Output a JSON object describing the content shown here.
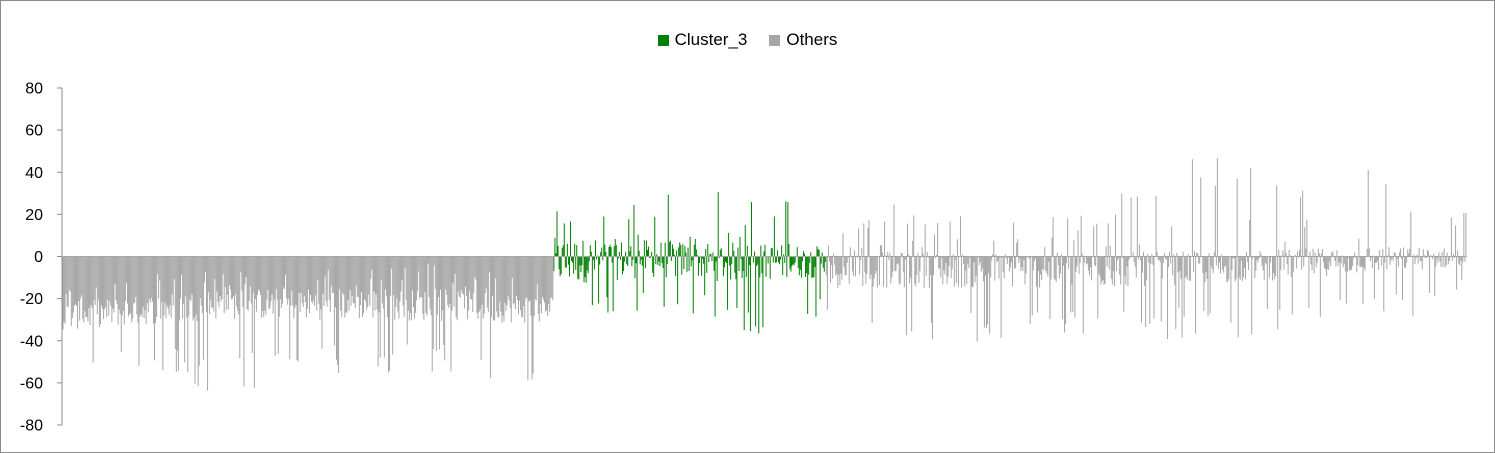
{
  "chart_data": {
    "type": "bar",
    "title": "",
    "xlabel": "",
    "ylabel": "",
    "ylim": [
      -80,
      80
    ],
    "yticks": [
      80,
      60,
      40,
      20,
      0,
      -20,
      -40,
      -60,
      -80
    ],
    "legend_position": "top-center",
    "grid": false,
    "series": [
      {
        "name": "Cluster_3",
        "color": "#007f00",
        "x_range": [
          472,
          733
        ],
        "envelope_low": [
          [
            472,
            -30
          ],
          [
            500,
            -28
          ],
          [
            540,
            -30
          ],
          [
            560,
            -25
          ],
          [
            600,
            -32
          ],
          [
            620,
            -28
          ],
          [
            650,
            -38
          ],
          [
            700,
            -36
          ],
          [
            733,
            -28
          ]
        ],
        "envelope_high": [
          [
            472,
            25
          ],
          [
            480,
            20
          ],
          [
            492,
            40
          ],
          [
            510,
            28
          ],
          [
            540,
            25
          ],
          [
            580,
            32
          ],
          [
            620,
            28
          ],
          [
            650,
            37
          ],
          [
            680,
            30
          ],
          [
            700,
            30
          ],
          [
            733,
            20
          ]
        ],
        "trend_low": [
          [
            472,
            -14
          ],
          [
            560,
            -10
          ],
          [
            640,
            -12
          ],
          [
            733,
            -10
          ]
        ],
        "trend_high": [
          [
            472,
            9
          ],
          [
            560,
            8
          ],
          [
            640,
            7
          ],
          [
            733,
            5
          ]
        ]
      },
      {
        "name": "Others",
        "color": "#a6a6a6",
        "x_range": [
          0,
          471,
          734,
          1349
        ],
        "envelope_low": [
          [
            0,
            -60
          ],
          [
            50,
            -50
          ],
          [
            150,
            -66
          ],
          [
            250,
            -58
          ],
          [
            350,
            -55
          ],
          [
            450,
            -65
          ],
          [
            471,
            -55
          ],
          [
            734,
            -25
          ],
          [
            800,
            -55
          ],
          [
            900,
            -40
          ],
          [
            1000,
            -38
          ],
          [
            1100,
            -40
          ],
          [
            1200,
            -35
          ],
          [
            1300,
            -30
          ],
          [
            1349,
            -15
          ]
        ],
        "envelope_high": [
          [
            0,
            -15
          ],
          [
            100,
            -5
          ],
          [
            200,
            -5
          ],
          [
            300,
            -5
          ],
          [
            350,
            7
          ],
          [
            400,
            -5
          ],
          [
            471,
            -10
          ],
          [
            734,
            10
          ],
          [
            800,
            25
          ],
          [
            900,
            20
          ],
          [
            1000,
            25
          ],
          [
            1060,
            55
          ],
          [
            1100,
            52
          ],
          [
            1200,
            30
          ],
          [
            1280,
            55
          ],
          [
            1300,
            25
          ],
          [
            1349,
            22
          ]
        ],
        "trend_low": [
          [
            0,
            -35
          ],
          [
            150,
            -30
          ],
          [
            300,
            -30
          ],
          [
            471,
            -32
          ],
          [
            734,
            -15
          ],
          [
            850,
            -15
          ],
          [
            1000,
            -15
          ],
          [
            1150,
            -12
          ],
          [
            1250,
            -8
          ],
          [
            1349,
            -5
          ]
        ],
        "trend_high": [
          [
            0,
            -22
          ],
          [
            150,
            -15
          ],
          [
            300,
            -15
          ],
          [
            471,
            -18
          ],
          [
            734,
            3
          ],
          [
            850,
            2
          ],
          [
            1000,
            2
          ],
          [
            1150,
            3
          ],
          [
            1250,
            5
          ],
          [
            1349,
            4
          ]
        ]
      }
    ]
  }
}
